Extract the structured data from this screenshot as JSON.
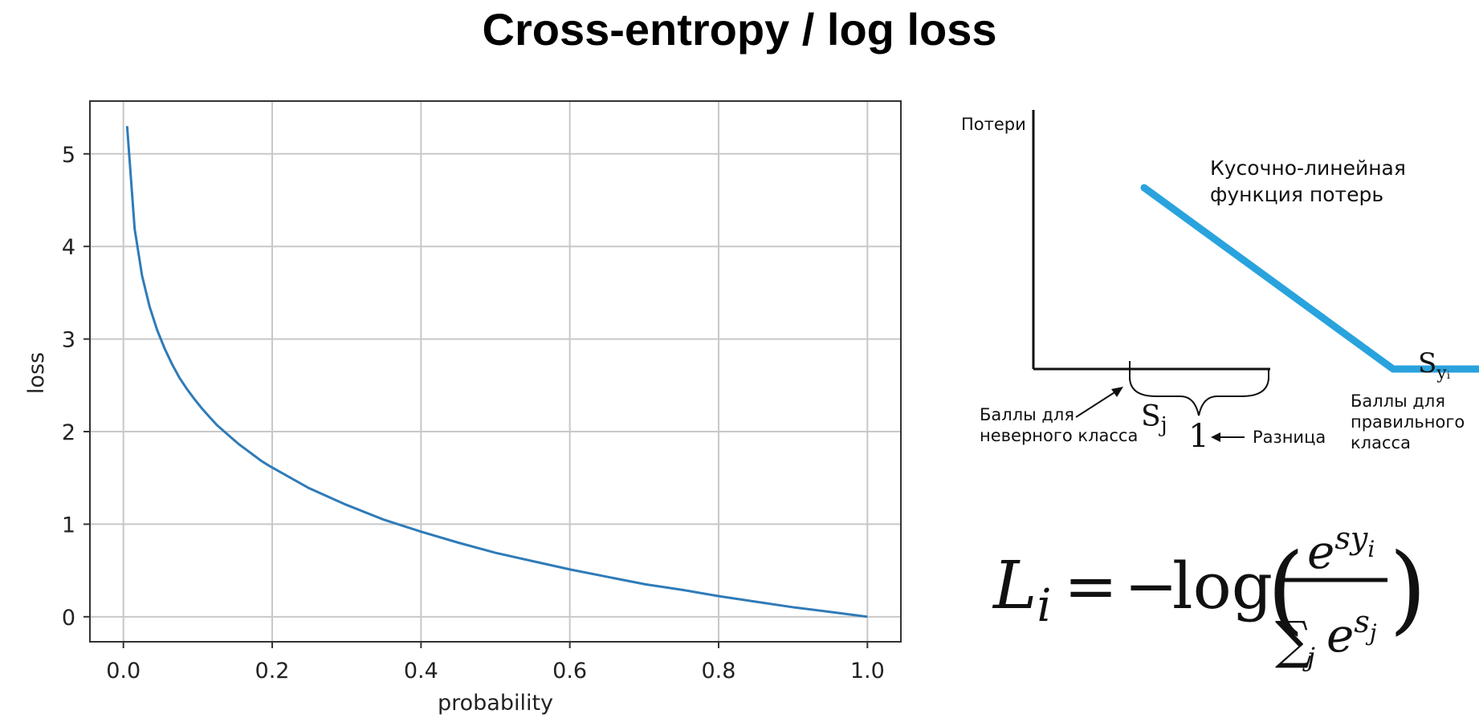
{
  "page": {
    "title": "Cross-entropy / log loss"
  },
  "chart_data": [
    {
      "type": "line",
      "title": "",
      "xlabel": "probability",
      "ylabel": "loss",
      "xlim": [
        -0.045,
        1.045
      ],
      "ylim": [
        -0.27,
        5.57
      ],
      "grid": true,
      "x_ticks": [
        0.0,
        0.2,
        0.4,
        0.6,
        0.8,
        1.0
      ],
      "x_tick_labels": [
        "0.0",
        "0.2",
        "0.4",
        "0.6",
        "0.8",
        "1.0"
      ],
      "y_ticks": [
        0,
        1,
        2,
        3,
        4,
        5
      ],
      "y_tick_labels": [
        "0",
        "1",
        "2",
        "3",
        "4",
        "5"
      ],
      "series": [
        {
          "color": "#2f7bb8",
          "x": [
            0.005,
            0.0151,
            0.0251,
            0.0352,
            0.0452,
            0.0553,
            0.0653,
            0.0754,
            0.0854,
            0.0955,
            0.1055,
            0.1156,
            0.1257,
            0.1357,
            0.1457,
            0.1558,
            0.1659,
            0.1759,
            0.1859,
            0.196,
            0.2492,
            0.2994,
            0.3497,
            0.3999,
            0.4502,
            0.5005,
            0.5507,
            0.601,
            0.6512,
            0.7015,
            0.7518,
            0.802,
            0.8523,
            0.9025,
            0.9528,
            1.0
          ],
          "y": [
            5.3,
            4.19,
            3.68,
            3.35,
            3.1,
            2.9,
            2.73,
            2.58,
            2.46,
            2.35,
            2.25,
            2.16,
            2.07,
            2.0,
            1.93,
            1.86,
            1.8,
            1.74,
            1.68,
            1.63,
            1.39,
            1.21,
            1.05,
            0.92,
            0.8,
            0.69,
            0.6,
            0.51,
            0.43,
            0.35,
            0.29,
            0.22,
            0.16,
            0.1,
            0.05,
            0.0
          ]
        }
      ]
    },
    {
      "type": "line",
      "title": "",
      "ylabel": "Потери",
      "annotation": "Кусочно-линейная функция потерь",
      "annotation_lines": [
        "Кусочно-линейная",
        "функция потерь"
      ],
      "x_label_symbol": "S",
      "x_label_subscript": "yᵢ",
      "sj_symbol": "S",
      "sj_subscript": "j",
      "margin_value": "1",
      "wrong_class_lines": [
        "Баллы для",
        "неверного класса"
      ],
      "correct_class_lines": [
        "Баллы для",
        "правильного",
        "класса"
      ],
      "margin_label": "Разница",
      "series": [
        {
          "color": "#29a3dd",
          "points": [
            [
              -1.0,
              2.0
            ],
            [
              1.0,
              0.0
            ],
            [
              1.9,
              0.0
            ]
          ]
        }
      ]
    }
  ],
  "formula": {
    "lhs_symbol": "L",
    "lhs_subscript": "i",
    "equals": "=",
    "minus": "−",
    "log": "log",
    "open_paren": "(",
    "close_paren": ")",
    "numerator_base": "e",
    "numerator_exp": "s",
    "numerator_exp_sub": "y",
    "numerator_exp_sub_sub": "i",
    "sum_symbol": "∑",
    "sum_index": "j",
    "denominator_base": "e",
    "denominator_exp": "s",
    "denominator_exp_sub": "j"
  }
}
